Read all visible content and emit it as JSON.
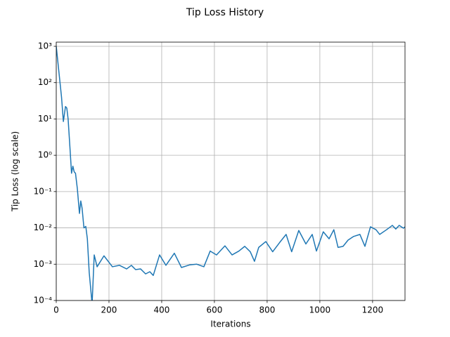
{
  "chart_data": {
    "type": "line",
    "title": "Tip Loss History",
    "xlabel": "Iterations",
    "ylabel": "Tip Loss (log scale)",
    "yscale": "log",
    "grid": true,
    "xlim": [
      0,
      1323
    ],
    "xticks": [
      0,
      200,
      400,
      600,
      800,
      1000,
      1200
    ],
    "ylim": [
      0.0001,
      1306
    ],
    "yticks": [
      {
        "value": 0.0001,
        "label": "10⁻⁴"
      },
      {
        "value": 0.001,
        "label": "10⁻³"
      },
      {
        "value": 0.01,
        "label": "10⁻²"
      },
      {
        "value": 0.1,
        "label": "10⁻¹"
      },
      {
        "value": 1,
        "label": "10⁰"
      },
      {
        "value": 10,
        "label": "10¹"
      },
      {
        "value": 100,
        "label": "10²"
      },
      {
        "value": 1000,
        "label": "10³"
      }
    ],
    "series": [
      {
        "color": "#1f77b4",
        "x": [
          0,
          10,
          20,
          27,
          35,
          40,
          45,
          52,
          58,
          63,
          68,
          73,
          80,
          88,
          93,
          98,
          105,
          112,
          118,
          125,
          136,
          144,
          155,
          181,
          213,
          240,
          267,
          285,
          301,
          320,
          339,
          355,
          368,
          392,
          416,
          448,
          475,
          507,
          533,
          560,
          584,
          608,
          640,
          667,
          693,
          715,
          736,
          752,
          768,
          795,
          821,
          848,
          872,
          893,
          920,
          947,
          971,
          987,
          1013,
          1035,
          1053,
          1069,
          1088,
          1107,
          1128,
          1152,
          1171,
          1192,
          1213,
          1227,
          1253,
          1275,
          1288,
          1301,
          1317,
          1323
        ],
        "values": [
          1000,
          200,
          40,
          8.5,
          22,
          20,
          10,
          1.6,
          0.32,
          0.5,
          0.35,
          0.32,
          0.12,
          0.025,
          0.055,
          0.035,
          0.01,
          0.011,
          0.005,
          0.0006,
          8e-05,
          0.0018,
          0.00085,
          0.0017,
          0.00085,
          0.00093,
          0.00074,
          0.00093,
          0.00071,
          0.00074,
          0.00054,
          0.00062,
          0.00049,
          0.0018,
          0.00093,
          0.002,
          0.00081,
          0.00096,
          0.001,
          0.00085,
          0.0023,
          0.0018,
          0.0032,
          0.0018,
          0.0023,
          0.0031,
          0.0022,
          0.0012,
          0.0029,
          0.0042,
          0.0022,
          0.004,
          0.0066,
          0.0022,
          0.0085,
          0.0036,
          0.0066,
          0.0023,
          0.0078,
          0.005,
          0.0089,
          0.0029,
          0.0031,
          0.0046,
          0.0058,
          0.0066,
          0.0031,
          0.0107,
          0.0089,
          0.0066,
          0.0089,
          0.0117,
          0.0093,
          0.0117,
          0.0098,
          0.0107
        ]
      }
    ]
  }
}
